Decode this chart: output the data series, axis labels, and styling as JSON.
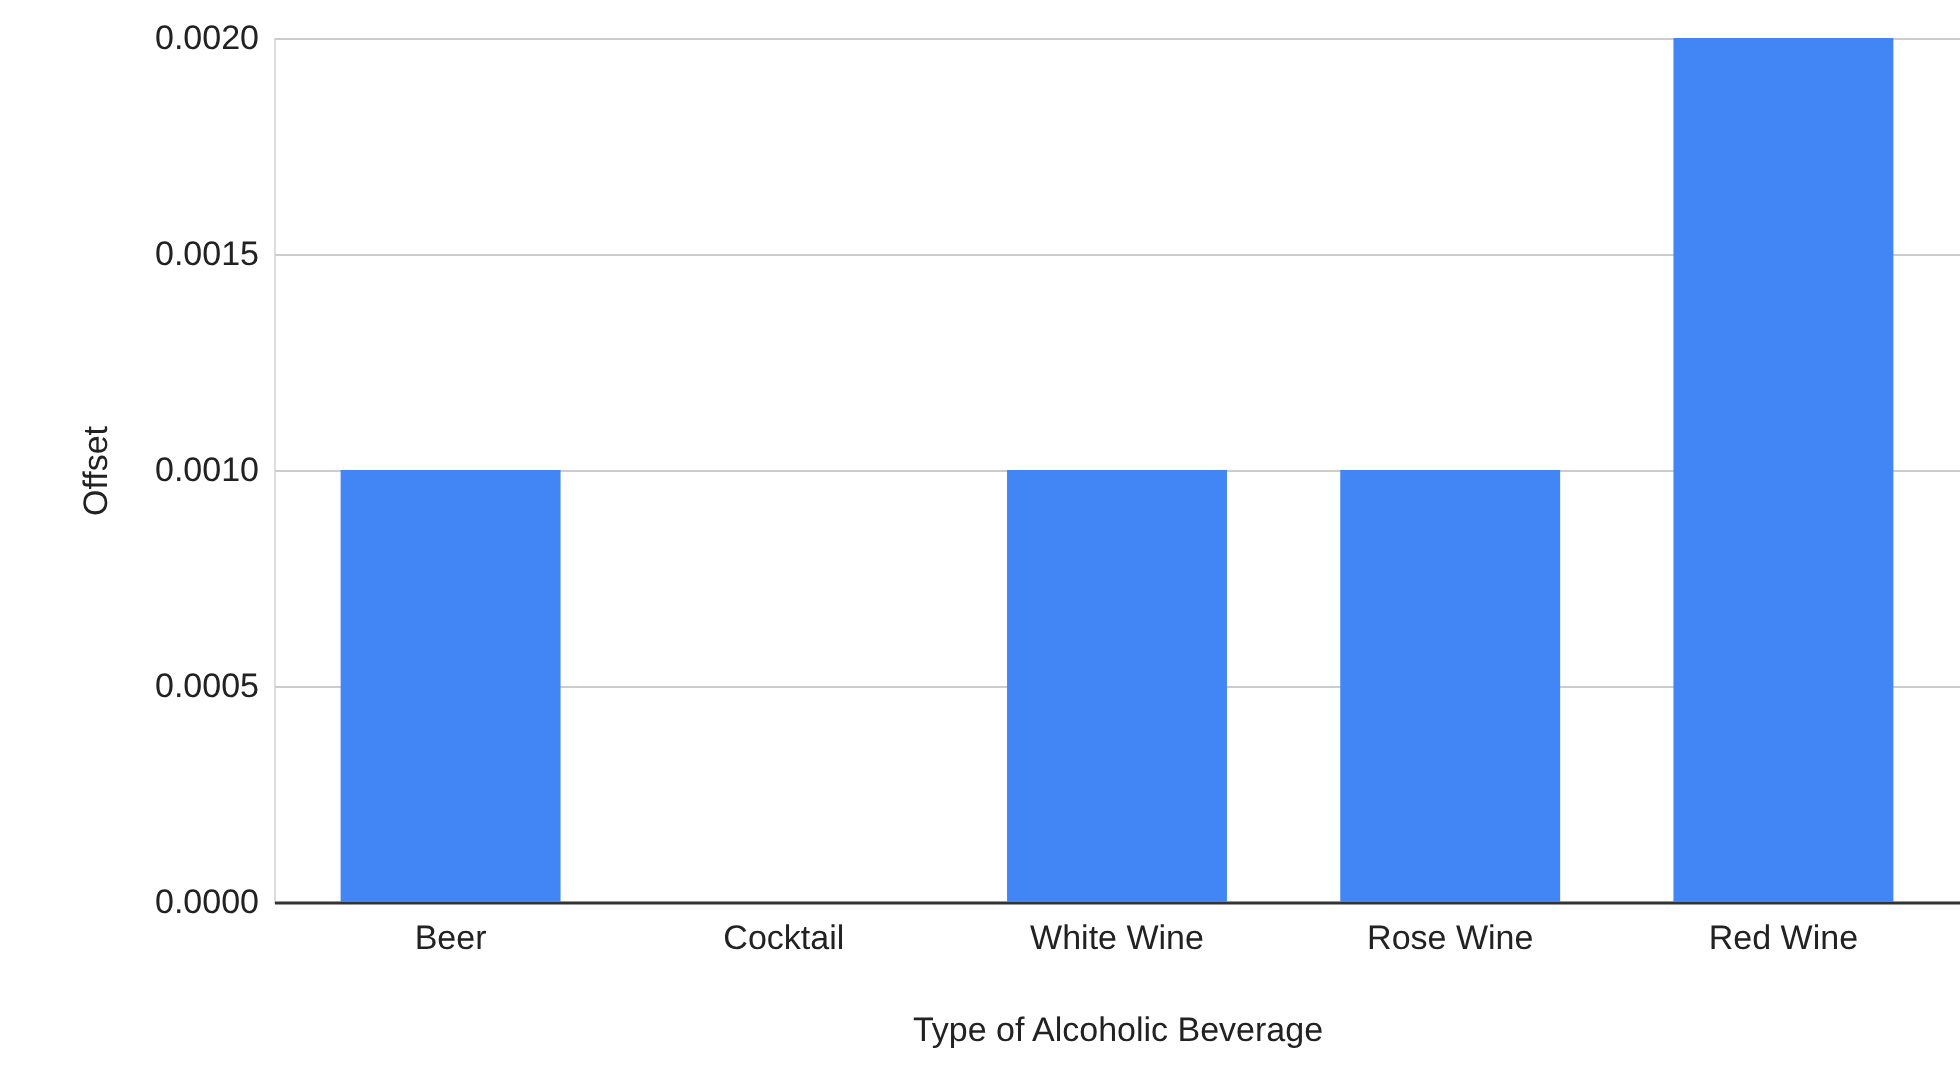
{
  "chart_data": {
    "type": "bar",
    "xlabel": "Type of Alcoholic Beverage",
    "ylabel": "Offset",
    "categories": [
      "Beer",
      "Cocktail",
      "White Wine",
      "Rose Wine",
      "Red Wine"
    ],
    "values": [
      0.001,
      0,
      0.001,
      0.001,
      0.002
    ],
    "color": "#4285f4",
    "ylim": [
      0,
      0.002
    ],
    "yticks": [
      {
        "value": 0,
        "label": "0.0000"
      },
      {
        "value": 0.0005,
        "label": "0.0005"
      },
      {
        "value": 0.001,
        "label": "0.0010"
      },
      {
        "value": 0.0015,
        "label": "0.0015"
      },
      {
        "value": 0.002,
        "label": "0.0020"
      }
    ],
    "grid": "y"
  }
}
